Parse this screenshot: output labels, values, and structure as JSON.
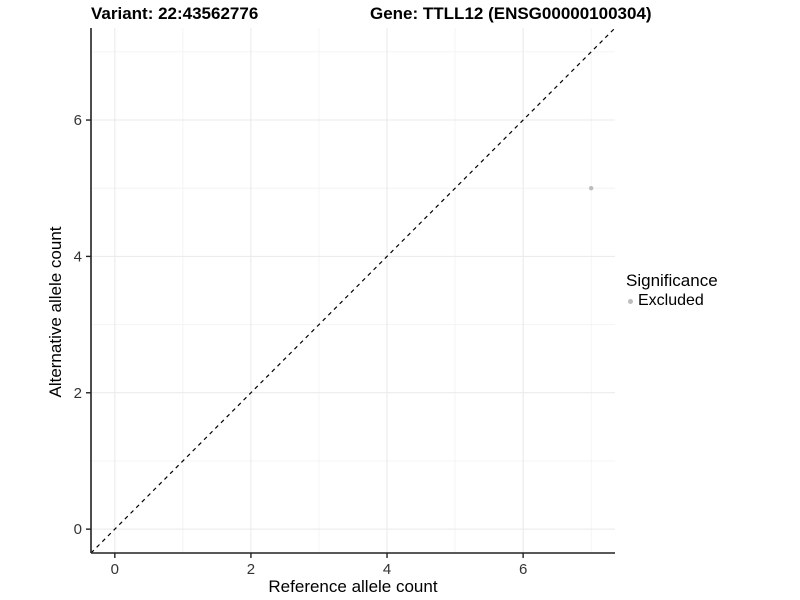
{
  "chart_data": {
    "type": "scatter",
    "title_left": "Variant: 22:43562776",
    "title_right": "Gene: TTLL12 (ENSG00000100304)",
    "xlabel": "Reference allele count",
    "ylabel": "Alternative allele count",
    "xlim": [
      -0.35,
      7.35
    ],
    "ylim": [
      -0.35,
      7.35
    ],
    "x_major_ticks": [
      0,
      2,
      4,
      6
    ],
    "y_major_ticks": [
      0,
      2,
      4,
      6
    ],
    "x_minor_gridlines": [
      1,
      3,
      5,
      7
    ],
    "y_minor_gridlines": [
      1,
      3,
      5,
      7
    ],
    "grid": "major+minor",
    "points": [
      {
        "x": 7,
        "y": 5,
        "series": "Excluded"
      }
    ],
    "identity_line": {
      "style": "dashed",
      "slope": 1,
      "intercept": 0
    },
    "legend": {
      "title": "Significance",
      "position": "right",
      "entries": [
        {
          "label": "Excluded",
          "color": "#bdbdbd"
        }
      ]
    },
    "colors": {
      "point": "#bdbdbd",
      "axis_line": "#222222",
      "tick_label": "#333333",
      "grid_major": "#e9e9e9",
      "grid_minor": "#f4f4f4",
      "dashed_line": "#000000",
      "background": "#ffffff"
    }
  }
}
